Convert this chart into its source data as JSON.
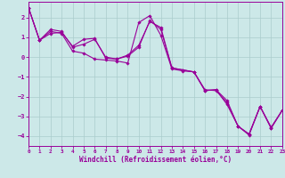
{
  "xlabel": "Windchill (Refroidissement éolien,°C)",
  "background_color": "#cce8e8",
  "grid_color": "#aacccc",
  "line_color": "#990099",
  "xlim": [
    0,
    23
  ],
  "ylim": [
    -4.5,
    2.8
  ],
  "yticks": [
    -4,
    -3,
    -2,
    -1,
    0,
    1,
    2
  ],
  "xticks": [
    0,
    1,
    2,
    3,
    4,
    5,
    6,
    7,
    8,
    9,
    10,
    11,
    12,
    13,
    14,
    15,
    16,
    17,
    18,
    19,
    20,
    21,
    22,
    23
  ],
  "series": [
    [
      2.5,
      0.85,
      1.3,
      1.2,
      0.3,
      0.2,
      -0.1,
      -0.15,
      -0.2,
      -0.3,
      1.75,
      2.1,
      1.1,
      -0.6,
      -0.7,
      -0.75,
      -1.7,
      -1.65,
      -2.4,
      -3.5,
      -3.9,
      -2.5,
      -3.6,
      -2.7
    ],
    [
      2.5,
      0.85,
      1.2,
      1.25,
      0.55,
      0.9,
      0.95,
      -0.05,
      -0.1,
      0.1,
      0.6,
      1.8,
      1.5,
      -0.55,
      -0.65,
      -0.75,
      -1.7,
      -1.65,
      -2.2,
      -3.5,
      -3.95,
      -2.5,
      -3.6,
      -2.7
    ],
    [
      2.5,
      0.85,
      1.4,
      1.3,
      0.5,
      0.65,
      0.9,
      0.0,
      -0.1,
      0.05,
      0.5,
      1.85,
      1.4,
      -0.55,
      -0.65,
      -0.75,
      -1.65,
      -1.7,
      -2.3,
      -3.5,
      -3.9,
      -2.5,
      -3.55,
      -2.7
    ]
  ]
}
